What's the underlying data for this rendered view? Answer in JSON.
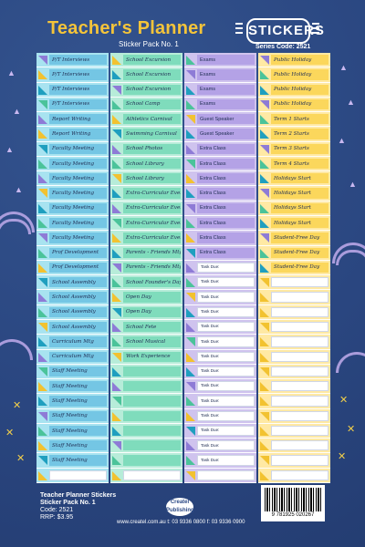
{
  "header": {
    "title": "Teacher's Planner",
    "subtitle": "Sticker Pack No. 1",
    "badge": "STICKERS",
    "series_code": "Series Code: 2521"
  },
  "colors": {
    "background": "#2c4a86",
    "col1_bg": "#a8e3f0",
    "col2_bg": "#b7ecd9",
    "col3_bg": "#cfc3ee",
    "col4_bg": "#ffe9a4",
    "title": "#f4c43a"
  },
  "columns": [
    {
      "rows": [
        {
          "label": "P/T Interviews",
          "color": "#74c6e4",
          "tri": "#8e7bd6"
        },
        {
          "label": "P/T Interviews",
          "color": "#74c6e4",
          "tri": "#f2c230"
        },
        {
          "label": "P/T Interviews",
          "color": "#74c6e4",
          "tri": "#1f9fbf"
        },
        {
          "label": "P/T Interviews",
          "color": "#74c6e4",
          "tri": "#4bc39a"
        },
        {
          "label": "Report Writing",
          "color": "#74c6e4",
          "tri": "#8e7bd6"
        },
        {
          "label": "Report Writing",
          "color": "#74c6e4",
          "tri": "#f2c230"
        },
        {
          "label": "Faculty Meeting",
          "color": "#74c6e4",
          "tri": "#1f9fbf"
        },
        {
          "label": "Faculty Meeting",
          "color": "#74c6e4",
          "tri": "#4bc39a"
        },
        {
          "label": "Faculty Meeting",
          "color": "#74c6e4",
          "tri": "#8e7bd6"
        },
        {
          "label": "Faculty Meeting",
          "color": "#74c6e4",
          "tri": "#f2c230"
        },
        {
          "label": "Faculty Meeting",
          "color": "#74c6e4",
          "tri": "#1f9fbf"
        },
        {
          "label": "Faculty Meeting",
          "color": "#74c6e4",
          "tri": "#4bc39a"
        },
        {
          "label": "Faculty Meeting",
          "color": "#74c6e4",
          "tri": "#8e7bd6"
        },
        {
          "label": "Prof Development",
          "color": "#74c6e4",
          "tri": "#4bc39a"
        },
        {
          "label": "Prof Development",
          "color": "#74c6e4",
          "tri": "#f2c230"
        },
        {
          "label": "School Assembly",
          "color": "#74c6e4",
          "tri": "#1f9fbf"
        },
        {
          "label": "School Assembly",
          "color": "#74c6e4",
          "tri": "#8e7bd6"
        },
        {
          "label": "School Assembly",
          "color": "#74c6e4",
          "tri": "#4bc39a"
        },
        {
          "label": "School Assembly",
          "color": "#74c6e4",
          "tri": "#f2c230"
        },
        {
          "label": "Curriculum Mtg",
          "color": "#74c6e4",
          "tri": "#1f9fbf"
        },
        {
          "label": "Curriculum Mtg",
          "color": "#74c6e4",
          "tri": "#8e7bd6"
        },
        {
          "label": "Staff Meeting",
          "color": "#74c6e4",
          "tri": "#4bc39a"
        },
        {
          "label": "Staff Meeting",
          "color": "#74c6e4",
          "tri": "#f2c230"
        },
        {
          "label": "Staff Meeting",
          "color": "#74c6e4",
          "tri": "#1f9fbf"
        },
        {
          "label": "Staff Meeting",
          "color": "#74c6e4",
          "tri": "#8e7bd6"
        },
        {
          "label": "Staff Meeting",
          "color": "#74c6e4",
          "tri": "#4bc39a"
        },
        {
          "label": "Staff Meeting",
          "color": "#74c6e4",
          "tri": "#f2c230"
        },
        {
          "label": "Staff Meeting",
          "color": "#74c6e4",
          "tri": "#1f9fbf"
        },
        {
          "label": "",
          "color": "#ffffff",
          "tri": "#f2c230"
        }
      ]
    },
    {
      "rows": [
        {
          "label": "School Excursion",
          "color": "#7fdcbc",
          "tri": "#f2c230"
        },
        {
          "label": "School Excursion",
          "color": "#7fdcbc",
          "tri": "#1f9fbf"
        },
        {
          "label": "School Excursion",
          "color": "#7fdcbc",
          "tri": "#8e7bd6"
        },
        {
          "label": "School Camp",
          "color": "#7fdcbc",
          "tri": "#4bc39a"
        },
        {
          "label": "Athletics Carnival",
          "color": "#7fdcbc",
          "tri": "#f2c230"
        },
        {
          "label": "Swimming Carnival",
          "color": "#7fdcbc",
          "tri": "#1f9fbf"
        },
        {
          "label": "School Photos",
          "color": "#7fdcbc",
          "tri": "#8e7bd6"
        },
        {
          "label": "School Library",
          "color": "#7fdcbc",
          "tri": "#4bc39a"
        },
        {
          "label": "School Library",
          "color": "#7fdcbc",
          "tri": "#f2c230"
        },
        {
          "label": "Extra-Curricular Event",
          "color": "#7fdcbc",
          "tri": "#1f9fbf"
        },
        {
          "label": "Extra-Curricular Event",
          "color": "#7fdcbc",
          "tri": "#8e7bd6"
        },
        {
          "label": "Extra-Curricular Event",
          "color": "#7fdcbc",
          "tri": "#4bc39a"
        },
        {
          "label": "Extra-Curricular Event",
          "color": "#7fdcbc",
          "tri": "#f2c230"
        },
        {
          "label": "Parents - Friends Mtg",
          "color": "#7fdcbc",
          "tri": "#1f9fbf"
        },
        {
          "label": "Parents - Friends Mtg",
          "color": "#7fdcbc",
          "tri": "#8e7bd6"
        },
        {
          "label": "School Founder's Day",
          "color": "#7fdcbc",
          "tri": "#4bc39a"
        },
        {
          "label": "Open Day",
          "color": "#7fdcbc",
          "tri": "#f2c230"
        },
        {
          "label": "Open Day",
          "color": "#7fdcbc",
          "tri": "#1f9fbf"
        },
        {
          "label": "School Fete",
          "color": "#7fdcbc",
          "tri": "#8e7bd6"
        },
        {
          "label": "School Musical",
          "color": "#7fdcbc",
          "tri": "#4bc39a"
        },
        {
          "label": "Work Experience",
          "color": "#7fdcbc",
          "tri": "#f2c230"
        },
        {
          "label": "",
          "color": "#7fdcbc",
          "tri": "#1f9fbf"
        },
        {
          "label": "",
          "color": "#7fdcbc",
          "tri": "#8e7bd6"
        },
        {
          "label": "",
          "color": "#7fdcbc",
          "tri": "#4bc39a"
        },
        {
          "label": "",
          "color": "#7fdcbc",
          "tri": "#f2c230"
        },
        {
          "label": "",
          "color": "#7fdcbc",
          "tri": "#1f9fbf"
        },
        {
          "label": "",
          "color": "#7fdcbc",
          "tri": "#8e7bd6"
        },
        {
          "label": "",
          "color": "#7fdcbc",
          "tri": "#4bc39a"
        },
        {
          "label": "",
          "color": "#ffffff",
          "tri": "#f2c230"
        }
      ]
    },
    {
      "rows": [
        {
          "label": "Exams",
          "color": "#b4a2e6",
          "tri": "#4bc39a"
        },
        {
          "label": "Exams",
          "color": "#b4a2e6",
          "tri": "#8e7bd6"
        },
        {
          "label": "Exams",
          "color": "#b4a2e6",
          "tri": "#1f9fbf"
        },
        {
          "label": "Exams",
          "color": "#b4a2e6",
          "tri": "#4bc39a"
        },
        {
          "label": "Guest Speaker",
          "color": "#b4a2e6",
          "tri": "#f2c230"
        },
        {
          "label": "Guest Speaker",
          "color": "#b4a2e6",
          "tri": "#1f9fbf"
        },
        {
          "label": "Extra Class",
          "color": "#b4a2e6",
          "tri": "#8e7bd6"
        },
        {
          "label": "Extra Class",
          "color": "#b4a2e6",
          "tri": "#4bc39a"
        },
        {
          "label": "Extra Class",
          "color": "#b4a2e6",
          "tri": "#f2c230"
        },
        {
          "label": "Extra Class",
          "color": "#b4a2e6",
          "tri": "#1f9fbf"
        },
        {
          "label": "Extra Class",
          "color": "#b4a2e6",
          "tri": "#8e7bd6"
        },
        {
          "label": "Extra Class",
          "color": "#b4a2e6",
          "tri": "#4bc39a"
        },
        {
          "label": "Extra Class",
          "color": "#b4a2e6",
          "tri": "#f2c230"
        },
        {
          "label": "Extra Class",
          "color": "#b4a2e6",
          "tri": "#1f9fbf"
        },
        {
          "label": "Task Due:",
          "color": "#ffffff",
          "tri": "#8e7bd6",
          "task": true
        },
        {
          "label": "Task Due:",
          "color": "#ffffff",
          "tri": "#4bc39a",
          "task": true
        },
        {
          "label": "Task Due:",
          "color": "#ffffff",
          "tri": "#f2c230",
          "task": true
        },
        {
          "label": "Task Due:",
          "color": "#ffffff",
          "tri": "#1f9fbf",
          "task": true
        },
        {
          "label": "Task Due:",
          "color": "#ffffff",
          "tri": "#8e7bd6",
          "task": true
        },
        {
          "label": "Task Due:",
          "color": "#ffffff",
          "tri": "#4bc39a",
          "task": true
        },
        {
          "label": "Task Due:",
          "color": "#ffffff",
          "tri": "#f2c230",
          "task": true
        },
        {
          "label": "Task Due:",
          "color": "#ffffff",
          "tri": "#1f9fbf",
          "task": true
        },
        {
          "label": "Task Due:",
          "color": "#ffffff",
          "tri": "#8e7bd6",
          "task": true
        },
        {
          "label": "Task Due:",
          "color": "#ffffff",
          "tri": "#4bc39a",
          "task": true
        },
        {
          "label": "Task Due:",
          "color": "#ffffff",
          "tri": "#f2c230",
          "task": true
        },
        {
          "label": "Task Due:",
          "color": "#ffffff",
          "tri": "#1f9fbf",
          "task": true
        },
        {
          "label": "Task Due:",
          "color": "#ffffff",
          "tri": "#8e7bd6",
          "task": true
        },
        {
          "label": "Task Due:",
          "color": "#ffffff",
          "tri": "#4bc39a",
          "task": true
        },
        {
          "label": "",
          "color": "#ffffff",
          "tri": "#f2c230"
        }
      ]
    },
    {
      "rows": [
        {
          "label": "Public Holiday",
          "color": "#fbd75c",
          "tri": "#8e7bd6"
        },
        {
          "label": "Public Holiday",
          "color": "#fbd75c",
          "tri": "#4bc39a"
        },
        {
          "label": "Public Holiday",
          "color": "#fbd75c",
          "tri": "#1f9fbf"
        },
        {
          "label": "Public Holiday",
          "color": "#fbd75c",
          "tri": "#8e7bd6"
        },
        {
          "label": "Term 1 Starts",
          "color": "#fbd75c",
          "tri": "#4bc39a"
        },
        {
          "label": "Term 2 Starts",
          "color": "#fbd75c",
          "tri": "#1f9fbf"
        },
        {
          "label": "Term 3 Starts",
          "color": "#fbd75c",
          "tri": "#8e7bd6"
        },
        {
          "label": "Term 4 Starts",
          "color": "#fbd75c",
          "tri": "#4bc39a"
        },
        {
          "label": "Holidays Start",
          "color": "#fbd75c",
          "tri": "#1f9fbf"
        },
        {
          "label": "Holidays Start",
          "color": "#fbd75c",
          "tri": "#8e7bd6"
        },
        {
          "label": "Holidays Start",
          "color": "#fbd75c",
          "tri": "#4bc39a"
        },
        {
          "label": "Holidays Start",
          "color": "#fbd75c",
          "tri": "#1f9fbf"
        },
        {
          "label": "Student-Free Day",
          "color": "#fbd75c",
          "tri": "#8e7bd6"
        },
        {
          "label": "Student-Free Day",
          "color": "#fbd75c",
          "tri": "#4bc39a"
        },
        {
          "label": "Student-Free Day",
          "color": "#fbd75c",
          "tri": "#1f9fbf"
        },
        {
          "label": "",
          "color": "#ffffff",
          "tri": "#f2c230"
        },
        {
          "label": "",
          "color": "#ffffff",
          "tri": "#f2c230"
        },
        {
          "label": "",
          "color": "#ffffff",
          "tri": "#f2c230"
        },
        {
          "label": "",
          "color": "#ffffff",
          "tri": "#f2c230"
        },
        {
          "label": "",
          "color": "#ffffff",
          "tri": "#f2c230"
        },
        {
          "label": "",
          "color": "#ffffff",
          "tri": "#f2c230"
        },
        {
          "label": "",
          "color": "#ffffff",
          "tri": "#f2c230"
        },
        {
          "label": "",
          "color": "#ffffff",
          "tri": "#f2c230"
        },
        {
          "label": "",
          "color": "#ffffff",
          "tri": "#f2c230"
        },
        {
          "label": "",
          "color": "#ffffff",
          "tri": "#f2c230"
        },
        {
          "label": "",
          "color": "#ffffff",
          "tri": "#f2c230"
        },
        {
          "label": "",
          "color": "#ffffff",
          "tri": "#f2c230"
        },
        {
          "label": "",
          "color": "#ffffff",
          "tri": "#f2c230"
        },
        {
          "label": "",
          "color": "#ffffff",
          "tri": "#f2c230"
        }
      ]
    }
  ],
  "footer": {
    "line1": "Teacher Planner Stickers",
    "line2": "Sticker Pack No. 1",
    "line3": "Code: 2521",
    "line4": "RRP: $3.95",
    "logo_line1": "Createl",
    "logo_line2": "Publishing",
    "url": "www.createl.com.au  t: 03 9336 0800  f: 03 9336 0900",
    "barcode_number": "9 781925 020267"
  }
}
